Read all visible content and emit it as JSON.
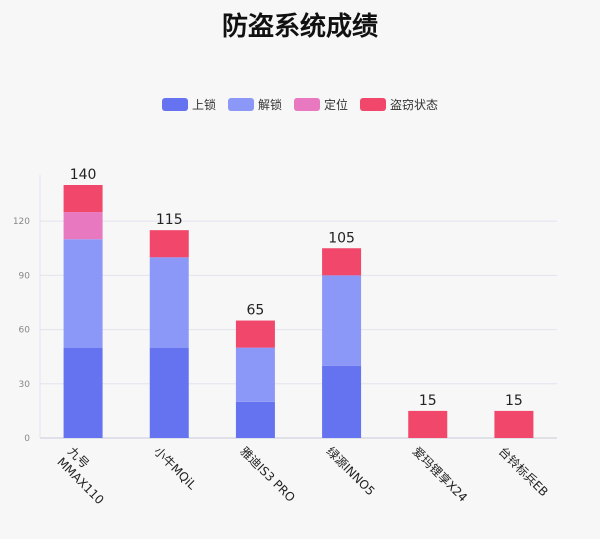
{
  "chart_data": {
    "type": "bar",
    "stacked": true,
    "title": "防盗系统成绩",
    "legend_position": "top-center",
    "categories": [
      "九号\nMMAX110",
      "小牛MQiL",
      "雅迪IS3 PRO",
      "绿源INNO5",
      "爱玛锂享X24",
      "台铃标兵EB"
    ],
    "series": [
      {
        "name": "上锁",
        "color": "#6673f0",
        "values": [
          50,
          50,
          20,
          40,
          0,
          0
        ]
      },
      {
        "name": "解锁",
        "color": "#8c98f8",
        "values": [
          60,
          50,
          30,
          50,
          0,
          0
        ]
      },
      {
        "name": "定位",
        "color": "#e878c0",
        "values": [
          15,
          0,
          0,
          0,
          0,
          0
        ]
      },
      {
        "name": "盗窃状态",
        "color": "#f0476a",
        "values": [
          15,
          15,
          15,
          15,
          15,
          15
        ]
      }
    ],
    "totals": [
      140,
      115,
      65,
      105,
      15,
      15
    ],
    "yticks": [
      0,
      30,
      60,
      90,
      120
    ],
    "ylim": [
      0,
      140
    ],
    "grid": true
  }
}
